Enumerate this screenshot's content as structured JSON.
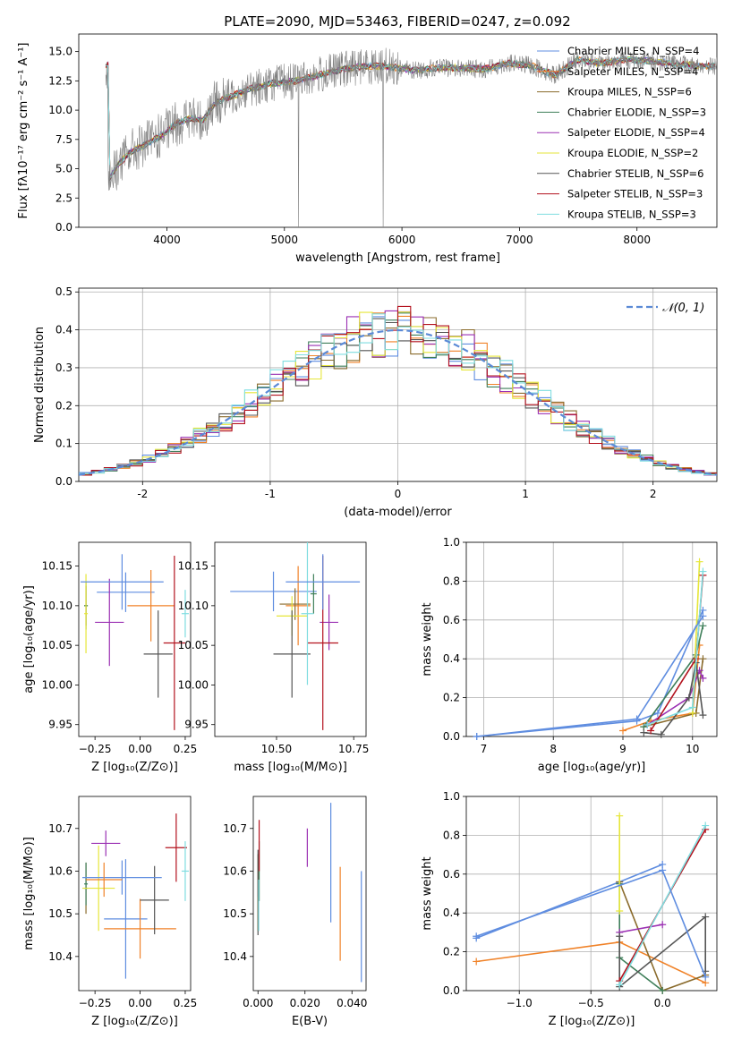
{
  "title": "PLATE=2090, MJD=53463, FIBERID=0247, z=0.092",
  "colors": {
    "grid": "#b0b0b0",
    "model_colors": [
      "#5f8de0",
      "#f08228",
      "#8a6b2c",
      "#3f7f5a",
      "#9b30b3",
      "#e6e639",
      "#555555",
      "#b3121e",
      "#7fdde0"
    ],
    "spectrum": "#808080",
    "gauss": "#5b8ad6"
  },
  "chart_data": [
    {
      "id": "spectrum",
      "type": "line",
      "xlabel": "wavelength [Angstrom, rest frame]",
      "ylabel": "Flux [fλ10⁻¹⁷ erg cm⁻² s⁻¹ A⁻¹]",
      "xlim": [
        3250,
        8680
      ],
      "ylim": [
        0,
        16.5
      ],
      "xticks": [
        4000,
        5000,
        6000,
        7000,
        8000
      ],
      "yticks": [
        0.0,
        2.5,
        5.0,
        7.5,
        10.0,
        12.5,
        15.0
      ],
      "grid": false,
      "legend_position": "top-right",
      "legend": [
        "Chabrier MILES, N_SSP=4",
        "Salpeter MILES, N_SSP=4",
        "Kroupa MILES, N_SSP=6",
        "Chabrier ELODIE, N_SSP=3",
        "Salpeter ELODIE, N_SSP=4",
        "Kroupa ELODIE, N_SSP=2",
        "Chabrier STELIB, N_SSP=6",
        "Salpeter STELIB, N_SSP=3",
        "Kroupa STELIB, N_SSP=3"
      ],
      "series_shape": {
        "x": [
          3500,
          3600,
          3700,
          3800,
          3900,
          4000,
          4100,
          4200,
          4300,
          4400,
          4500,
          4700,
          4900,
          5100,
          5300,
          5500,
          5700,
          5900,
          6100,
          6300,
          6500,
          6700,
          6900,
          7100,
          7300,
          7500,
          7700,
          7900,
          8100,
          8300,
          8500,
          8680
        ],
        "y": [
          4.0,
          5.5,
          6.5,
          7.0,
          7.5,
          8.2,
          9.0,
          9.3,
          9.0,
          10.5,
          11.0,
          11.8,
          12.3,
          12.5,
          13.0,
          13.5,
          13.8,
          13.7,
          13.4,
          13.6,
          13.6,
          13.5,
          14.0,
          13.8,
          13.0,
          14.3,
          14.0,
          14.3,
          14.2,
          14.0,
          13.8,
          13.8
        ]
      }
    },
    {
      "id": "residuals",
      "type": "bar",
      "xlabel": "(data-model)/error",
      "ylabel": "Normed distribution",
      "xlim": [
        -2.5,
        2.5
      ],
      "ylim": [
        0,
        0.51
      ],
      "xticks": [
        -2,
        -1,
        0,
        1,
        2
      ],
      "yticks": [
        0.0,
        0.1,
        0.2,
        0.3,
        0.4,
        0.5
      ],
      "grid": true,
      "legend_position": "top-right",
      "legend": [
        "𝒩(0, 1)"
      ],
      "bin_width": 0.1,
      "bin_start": -2.5
    },
    {
      "id": "age_vs_Z",
      "type": "scatter",
      "xlabel": "Z [log₁₀(Z/Z⊙)]",
      "ylabel": "age  [log₁₀(age/yr)]",
      "xlim": [
        -0.34,
        0.28
      ],
      "ylim": [
        9.935,
        10.18
      ],
      "xticks": [
        -0.25,
        0.0,
        0.25
      ],
      "xticklabels": [
        "−0.25",
        "0.00",
        "0.25"
      ],
      "yticks": [
        9.95,
        10.0,
        10.05,
        10.1,
        10.15
      ],
      "points": [
        {
          "x": -0.08,
          "y": 10.117,
          "xerr": 0.16,
          "yerr": 0.025
        },
        {
          "x": 0.06,
          "y": 10.1,
          "xerr": 0.13,
          "yerr": 0.045
        },
        {
          "x": -0.3,
          "y": 10.1,
          "xerr": 0.01,
          "yerr": 0.025
        },
        {
          "x": -0.3,
          "y": 10.1,
          "xerr": 0.01,
          "yerr": 0.03
        },
        {
          "x": -0.17,
          "y": 10.079,
          "xerr": 0.08,
          "yerr": 0.055
        },
        {
          "x": -0.3,
          "y": 10.09,
          "xerr": 0.01,
          "yerr": 0.05
        },
        {
          "x": 0.1,
          "y": 10.039,
          "xerr": 0.08,
          "yerr": 0.055
        },
        {
          "x": 0.19,
          "y": 10.053,
          "xerr": 0.06,
          "yerr": 0.11
        },
        {
          "x": 0.25,
          "y": 10.09,
          "xerr": 0.02,
          "yerr": 0.03
        },
        {
          "x": -0.1,
          "y": 10.13,
          "xerr": 0.23,
          "yerr": 0.035
        }
      ]
    },
    {
      "id": "age_vs_mass",
      "type": "scatter",
      "xlabel": "mass [log₁₀(M/M⊙)]",
      "ylabel": "",
      "xlim": [
        10.3,
        10.79
      ],
      "ylim": [
        9.935,
        10.18
      ],
      "xticks": [
        10.5,
        10.75
      ],
      "xticklabels": [
        "10.50",
        "10.75"
      ],
      "xticks_minor_label": [
        {
          "v": 10.4,
          "t": ""
        }
      ],
      "xticklabels_all": [
        {
          "v": 10.5,
          "t": "10.50"
        },
        {
          "v": 10.75,
          "t": "10.75"
        }
      ],
      "yticks": [
        9.95,
        10.0,
        10.05,
        10.1,
        10.15
      ],
      "points": [
        {
          "x": 10.49,
          "y": 10.118,
          "xerr": 0.14,
          "yerr": 0.025
        },
        {
          "x": 10.57,
          "y": 10.1,
          "xerr": 0.04,
          "yerr": 0.05
        },
        {
          "x": 10.56,
          "y": 10.102,
          "xerr": 0.05,
          "yerr": 0.02
        },
        {
          "x": 10.62,
          "y": 10.115,
          "xerr": 0.01,
          "yerr": 0.025
        },
        {
          "x": 10.67,
          "y": 10.079,
          "xerr": 0.03,
          "yerr": 0.035
        },
        {
          "x": 10.55,
          "y": 10.087,
          "xerr": 0.05,
          "yerr": 0.025
        },
        {
          "x": 10.55,
          "y": 10.039,
          "xerr": 0.06,
          "yerr": 0.055
        },
        {
          "x": 10.65,
          "y": 10.053,
          "xerr": 0.05,
          "yerr": 0.11
        },
        {
          "x": 10.6,
          "y": 10.09,
          "xerr": 0.02,
          "yerr": 0.09
        },
        {
          "x": 10.65,
          "y": 10.13,
          "xerr": 0.12,
          "yerr": 0.035
        }
      ]
    },
    {
      "id": "weight_vs_age",
      "type": "line",
      "xlabel": "age  [log₁₀(age/yr)]",
      "ylabel": "mass weight",
      "xlim": [
        6.75,
        10.35
      ],
      "ylim": [
        0,
        1.0
      ],
      "xticks": [
        7,
        8,
        9,
        10
      ],
      "yticks": [
        0.0,
        0.2,
        0.4,
        0.6,
        0.8,
        1.0
      ],
      "yticklabels": [
        "0.0",
        "0.2",
        "0.4",
        "0.6",
        "0.8",
        "1.0"
      ],
      "grid": true,
      "series": [
        {
          "x": [
            6.9,
            9.2,
            9.5,
            10.15
          ],
          "y": [
            0.0,
            0.08,
            0.12,
            0.65
          ]
        },
        {
          "x": [
            9.0,
            9.4,
            10.0,
            10.1
          ],
          "y": [
            0.03,
            0.08,
            0.12,
            0.47
          ]
        },
        {
          "x": [
            9.3,
            10.05,
            10.15
          ],
          "y": [
            0.05,
            0.12,
            0.4
          ]
        },
        {
          "x": [
            9.3,
            10.05,
            10.15
          ],
          "y": [
            0.05,
            0.42,
            0.57
          ]
        },
        {
          "x": [
            9.35,
            9.95,
            10.1,
            10.15
          ],
          "y": [
            0.06,
            0.2,
            0.34,
            0.3
          ]
        },
        {
          "x": [
            10.0,
            10.1
          ],
          "y": [
            0.12,
            0.9
          ]
        },
        {
          "x": [
            9.3,
            9.55,
            9.95,
            10.05,
            10.15
          ],
          "y": [
            0.02,
            0.01,
            0.2,
            0.38,
            0.11
          ]
        },
        {
          "x": [
            9.4,
            10.05,
            10.15
          ],
          "y": [
            0.03,
            0.4,
            0.83
          ]
        },
        {
          "x": [
            9.35,
            10.0,
            10.15
          ],
          "y": [
            0.06,
            0.15,
            0.85
          ]
        },
        {
          "x": [
            6.9,
            9.2,
            10.15
          ],
          "y": [
            0.0,
            0.09,
            0.62
          ]
        }
      ]
    },
    {
      "id": "mass_vs_Z",
      "type": "scatter",
      "xlabel": "Z [log₁₀(Z/Z⊙)]",
      "ylabel": "mass [log₁₀(M/M⊙)]",
      "xlim": [
        -0.34,
        0.28
      ],
      "ylim": [
        10.32,
        10.775
      ],
      "xticks": [
        -0.25,
        0.0,
        0.25
      ],
      "xticklabels": [
        "−0.25",
        "0.00",
        "0.25"
      ],
      "yticks": [
        10.4,
        10.5,
        10.6,
        10.7
      ],
      "points": [
        {
          "x": -0.08,
          "y": 10.488,
          "xerr": 0.12,
          "yerr": 0.14
        },
        {
          "x": 0.0,
          "y": 10.465,
          "xerr": 0.2,
          "yerr": 0.07
        },
        {
          "x": -0.3,
          "y": 10.56,
          "xerr": 0.01,
          "yerr": 0.06
        },
        {
          "x": -0.3,
          "y": 10.57,
          "xerr": 0.01,
          "yerr": 0.05
        },
        {
          "x": -0.19,
          "y": 10.665,
          "xerr": 0.08,
          "yerr": 0.03
        },
        {
          "x": -0.23,
          "y": 10.56,
          "xerr": 0.09,
          "yerr": 0.1
        },
        {
          "x": 0.08,
          "y": 10.532,
          "xerr": 0.08,
          "yerr": 0.08
        },
        {
          "x": 0.2,
          "y": 10.655,
          "xerr": 0.06,
          "yerr": 0.08
        },
        {
          "x": 0.25,
          "y": 10.6,
          "xerr": 0.02,
          "yerr": 0.07
        },
        {
          "x": -0.1,
          "y": 10.585,
          "xerr": 0.22,
          "yerr": 0.04
        },
        {
          "x": -0.2,
          "y": 10.58,
          "xerr": 0.1,
          "yerr": 0.04
        }
      ]
    },
    {
      "id": "mass_vs_ebv",
      "type": "scatter",
      "xlabel": "E(B-V)",
      "ylabel": "",
      "xlim": [
        -0.002,
        0.046
      ],
      "ylim": [
        10.32,
        10.775
      ],
      "xticks": [
        0.0,
        0.02,
        0.04
      ],
      "xticklabels": [
        "0.000",
        "0.020",
        "0.040"
      ],
      "yticks": [
        10.4,
        10.5,
        10.6,
        10.7
      ],
      "points": [
        {
          "x": 0.044,
          "y": 10.47,
          "yerr": 0.13
        },
        {
          "x": 0.035,
          "y": 10.5,
          "yerr": 0.11
        },
        {
          "x": 0.0,
          "y": 10.55,
          "yerr": 0.09
        },
        {
          "x": 0.0005,
          "y": 10.6,
          "yerr": 0.07
        },
        {
          "x": 0.021,
          "y": 10.655,
          "yerr": 0.045
        },
        {
          "x": 0.0,
          "y": 10.5,
          "yerr": 0.04
        },
        {
          "x": 0.0,
          "y": 10.55,
          "yerr": 0.1
        },
        {
          "x": 0.0005,
          "y": 10.66,
          "yerr": 0.06
        },
        {
          "x": 0.0003,
          "y": 10.52,
          "yerr": 0.06
        },
        {
          "x": 0.031,
          "y": 10.62,
          "yerr": 0.14
        }
      ]
    },
    {
      "id": "weight_vs_Z",
      "type": "line",
      "xlabel": "Z [log₁₀(Z/Z⊙)]",
      "ylabel": "mass weight",
      "xlim": [
        -1.37,
        0.38
      ],
      "ylim": [
        0,
        1.0
      ],
      "xticks": [
        -1.0,
        -0.5,
        0.0
      ],
      "xticklabels": [
        "−1.0",
        "−0.5",
        "0.0"
      ],
      "yticks": [
        0.0,
        0.2,
        0.4,
        0.6,
        0.8,
        1.0
      ],
      "yticklabels": [
        "0.0",
        "0.2",
        "0.4",
        "0.6",
        "0.8",
        "1.0"
      ],
      "grid": true,
      "series": [
        {
          "x": [
            -1.3,
            -0.3,
            0.0
          ],
          "y": [
            0.27,
            0.56,
            0.65
          ]
        },
        {
          "x": [
            -1.3,
            -0.3,
            0.3
          ],
          "y": [
            0.15,
            0.25,
            0.04
          ]
        },
        {
          "x": [
            -0.3,
            0.0,
            0.3
          ],
          "y": [
            0.56,
            0.0,
            0.08
          ]
        },
        {
          "x": [
            -0.3,
            -0.3,
            0.0
          ],
          "y": [
            0.55,
            0.17,
            0.0
          ]
        },
        {
          "x": [
            -0.3,
            0.0
          ],
          "y": [
            0.3,
            0.34
          ]
        },
        {
          "x": [
            -0.3,
            -0.3
          ],
          "y": [
            0.9,
            0.41
          ]
        },
        {
          "x": [
            -0.3,
            -0.3,
            0.3,
            0.3
          ],
          "y": [
            0.28,
            0.02,
            0.38,
            0.1
          ]
        },
        {
          "x": [
            -0.3,
            0.3
          ],
          "y": [
            0.05,
            0.83
          ]
        },
        {
          "x": [
            -0.3,
            0.3
          ],
          "y": [
            0.03,
            0.85
          ]
        },
        {
          "x": [
            -1.3,
            0.0,
            0.3
          ],
          "y": [
            0.28,
            0.62,
            0.07
          ]
        }
      ]
    }
  ]
}
